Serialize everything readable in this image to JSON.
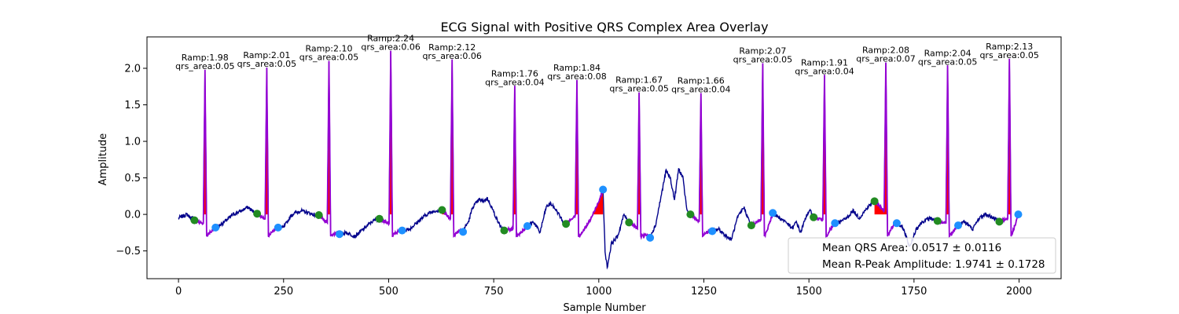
{
  "chart_data": {
    "type": "line",
    "title": "ECG Signal with Positive QRS Complex Area Overlay",
    "xlabel": "Sample Number",
    "ylabel": "Amplitude",
    "xlim": [
      -75,
      2100
    ],
    "ylim": [
      -0.88,
      2.43
    ],
    "xticks": [
      0,
      250,
      500,
      750,
      1000,
      1250,
      1500,
      1750,
      2000
    ],
    "yticks": [
      -0.5,
      0.0,
      0.5,
      1.0,
      1.5,
      2.0
    ],
    "ytick_labels": [
      "−0.5",
      "0.0",
      "0.5",
      "1.0",
      "1.5",
      "2.0"
    ],
    "colors": {
      "signal": "#00008b",
      "qrs_segment": "#9400d3",
      "qrs_area": "#ff0000",
      "q_point": "#228b22",
      "s_point": "#1e90ff"
    },
    "beats": [
      {
        "r": 63,
        "ramp": 1.98,
        "q": 38,
        "qv": -0.08,
        "s": 88,
        "sv": -0.18,
        "label1": "Ramp:1.98",
        "label2": "qrs_area:0.05"
      },
      {
        "r": 210,
        "ramp": 2.01,
        "q": 187,
        "qv": 0.01,
        "s": 237,
        "sv": -0.18,
        "label1": "Ramp:2.01",
        "label2": "qrs_area:0.05"
      },
      {
        "r": 358,
        "ramp": 2.1,
        "q": 334,
        "qv": -0.01,
        "s": 383,
        "sv": -0.27,
        "label1": "Ramp:2.10",
        "label2": "qrs_area:0.05"
      },
      {
        "r": 505,
        "ramp": 2.24,
        "q": 478,
        "qv": -0.06,
        "s": 532,
        "sv": -0.22,
        "label1": "Ramp:2.24",
        "label2": "qrs_area:0.06"
      },
      {
        "r": 651,
        "ramp": 2.12,
        "q": 627,
        "qv": 0.06,
        "s": 677,
        "sv": -0.24,
        "label1": "Ramp:2.12",
        "label2": "qrs_area:0.06"
      },
      {
        "r": 800,
        "ramp": 1.76,
        "q": 775,
        "qv": -0.22,
        "s": 830,
        "sv": -0.16,
        "label1": "Ramp:1.76",
        "label2": "qrs_area:0.04"
      },
      {
        "r": 948,
        "ramp": 1.84,
        "q": 922,
        "qv": -0.13,
        "s": 1010,
        "sv": 0.34,
        "label1": "Ramp:1.84",
        "label2": "qrs_area:0.08"
      },
      {
        "r": 1096,
        "ramp": 1.67,
        "q": 1072,
        "qv": -0.11,
        "s": 1122,
        "sv": -0.32,
        "label1": "Ramp:1.67",
        "label2": "qrs_area:0.05"
      },
      {
        "r": 1243,
        "ramp": 1.66,
        "q": 1218,
        "qv": 0.0,
        "s": 1270,
        "sv": -0.23,
        "label1": "Ramp:1.66",
        "label2": "qrs_area:0.04"
      },
      {
        "r": 1390,
        "ramp": 2.07,
        "q": 1363,
        "qv": -0.15,
        "s": 1414,
        "sv": 0.02,
        "label1": "Ramp:2.07",
        "label2": "qrs_area:0.05"
      },
      {
        "r": 1537,
        "ramp": 1.91,
        "q": 1511,
        "qv": -0.04,
        "s": 1562,
        "sv": -0.12,
        "label1": "Ramp:1.91",
        "label2": "qrs_area:0.04"
      },
      {
        "r": 1683,
        "ramp": 2.08,
        "q": 1656,
        "qv": 0.18,
        "s": 1709,
        "sv": -0.12,
        "label1": "Ramp:2.08",
        "label2": "qrs_area:0.07"
      },
      {
        "r": 1830,
        "ramp": 2.04,
        "q": 1806,
        "qv": -0.09,
        "s": 1855,
        "sv": -0.15,
        "label1": "Ramp:2.04",
        "label2": "qrs_area:0.05"
      },
      {
        "r": 1977,
        "ramp": 2.13,
        "q": 1953,
        "qv": -0.1,
        "s": 1998,
        "sv": 0.0,
        "label1": "Ramp:2.13",
        "label2": "qrs_area:0.05"
      }
    ],
    "baseline_knots": [
      [
        0,
        -0.05
      ],
      [
        20,
        0.0
      ],
      [
        30,
        -0.05
      ],
      [
        50,
        -0.04
      ],
      [
        70,
        -0.18
      ],
      [
        90,
        -0.18
      ],
      [
        110,
        -0.1
      ],
      [
        130,
        0.0
      ],
      [
        150,
        0.05
      ],
      [
        165,
        0.1
      ],
      [
        175,
        0.05
      ],
      [
        190,
        0.0
      ],
      [
        230,
        -0.2
      ],
      [
        250,
        -0.18
      ],
      [
        270,
        0.0
      ],
      [
        290,
        0.05
      ],
      [
        310,
        0.02
      ],
      [
        330,
        -0.02
      ],
      [
        380,
        -0.27
      ],
      [
        400,
        -0.25
      ],
      [
        420,
        -0.3
      ],
      [
        440,
        -0.2
      ],
      [
        460,
        -0.1
      ],
      [
        475,
        -0.06
      ],
      [
        530,
        -0.22
      ],
      [
        550,
        -0.2
      ],
      [
        570,
        -0.1
      ],
      [
        590,
        0.0
      ],
      [
        610,
        0.05
      ],
      [
        625,
        0.06
      ],
      [
        675,
        -0.24
      ],
      [
        690,
        -0.1
      ],
      [
        700,
        0.1
      ],
      [
        715,
        0.2
      ],
      [
        725,
        0.18
      ],
      [
        735,
        0.22
      ],
      [
        745,
        0.1
      ],
      [
        760,
        -0.1
      ],
      [
        770,
        -0.2
      ],
      [
        830,
        -0.16
      ],
      [
        845,
        -0.1
      ],
      [
        860,
        -0.25
      ],
      [
        875,
        0.1
      ],
      [
        885,
        0.15
      ],
      [
        900,
        0.05
      ],
      [
        915,
        -0.1
      ],
      [
        920,
        -0.13
      ],
      [
        1010,
        0.34
      ],
      [
        1015,
        -0.5
      ],
      [
        1020,
        -0.73
      ],
      [
        1030,
        -0.4
      ],
      [
        1045,
        -0.3
      ],
      [
        1060,
        0.0
      ],
      [
        1070,
        -0.1
      ],
      [
        1120,
        -0.32
      ],
      [
        1135,
        -0.15
      ],
      [
        1150,
        0.3
      ],
      [
        1160,
        0.6
      ],
      [
        1170,
        0.5
      ],
      [
        1180,
        0.2
      ],
      [
        1190,
        0.62
      ],
      [
        1200,
        0.5
      ],
      [
        1210,
        0.05
      ],
      [
        1217,
        0.0
      ],
      [
        1270,
        -0.23
      ],
      [
        1285,
        -0.2
      ],
      [
        1300,
        -0.28
      ],
      [
        1315,
        -0.35
      ],
      [
        1330,
        -0.05
      ],
      [
        1345,
        0.1
      ],
      [
        1355,
        -0.05
      ],
      [
        1362,
        -0.15
      ],
      [
        1414,
        0.02
      ],
      [
        1430,
        -0.05
      ],
      [
        1445,
        -0.1
      ],
      [
        1460,
        -0.2
      ],
      [
        1470,
        -0.1
      ],
      [
        1480,
        -0.25
      ],
      [
        1495,
        0.0
      ],
      [
        1505,
        0.05
      ],
      [
        1510,
        -0.04
      ],
      [
        1560,
        -0.12
      ],
      [
        1575,
        -0.1
      ],
      [
        1590,
        -0.05
      ],
      [
        1605,
        0.05
      ],
      [
        1620,
        -0.05
      ],
      [
        1640,
        0.1
      ],
      [
        1655,
        0.18
      ],
      [
        1710,
        -0.12
      ],
      [
        1725,
        -0.2
      ],
      [
        1740,
        -0.45
      ],
      [
        1755,
        -0.2
      ],
      [
        1770,
        -0.1
      ],
      [
        1790,
        -0.05
      ],
      [
        1805,
        -0.09
      ],
      [
        1855,
        -0.15
      ],
      [
        1870,
        -0.1
      ],
      [
        1890,
        -0.2
      ],
      [
        1905,
        -0.05
      ],
      [
        1920,
        0.0
      ],
      [
        1940,
        -0.05
      ],
      [
        1952,
        -0.1
      ],
      [
        1998,
        0.0
      ]
    ],
    "legend": {
      "location": "lower-right",
      "entries": [
        "Mean QRS Area: 0.0517 ± 0.0116",
        "Mean R-Peak Amplitude: 1.9741 ± 0.1728"
      ]
    }
  }
}
